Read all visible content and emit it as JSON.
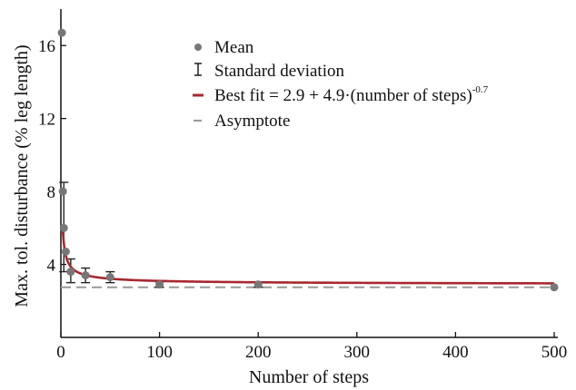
{
  "chart_data": {
    "type": "scatter",
    "title": "",
    "xlabel": "Number of steps",
    "ylabel": "Max. tol. disturbance (% leg length)",
    "xlim": [
      0,
      500
    ],
    "ylim": [
      0,
      17.6
    ],
    "xticks": [
      0,
      100,
      200,
      300,
      400,
      500
    ],
    "yticks": [
      4,
      8,
      12,
      16
    ],
    "grid": false,
    "legend_position": "upper-right",
    "series": [
      {
        "name": "Mean",
        "style": "point",
        "color": "#777777",
        "x": [
          1,
          2,
          3,
          5,
          10,
          25,
          50,
          100,
          200,
          500
        ],
        "y": [
          16.7,
          8.0,
          6.0,
          4.7,
          3.6,
          3.4,
          3.3,
          2.9,
          2.9,
          2.75
        ]
      },
      {
        "name": "Standard deviation",
        "style": "errorbar",
        "color": "#222222",
        "x": [
          3,
          10,
          25,
          50,
          100,
          200
        ],
        "low": [
          3.6,
          3.0,
          3.0,
          3.0,
          2.75,
          2.75
        ],
        "high": [
          8.5,
          4.3,
          3.8,
          3.6,
          3.05,
          3.05
        ]
      },
      {
        "name": "Best fit = 2.9 + 4.9·(number of steps)",
        "exponent_label": "-0.7",
        "style": "line",
        "color": "#a8282e",
        "formula": {
          "a": 2.9,
          "b": 4.9,
          "c": -0.7
        },
        "x_start": 2
      },
      {
        "name": "Asymptote",
        "style": "dashed",
        "color": "#999999",
        "y": 2.75
      }
    ]
  }
}
